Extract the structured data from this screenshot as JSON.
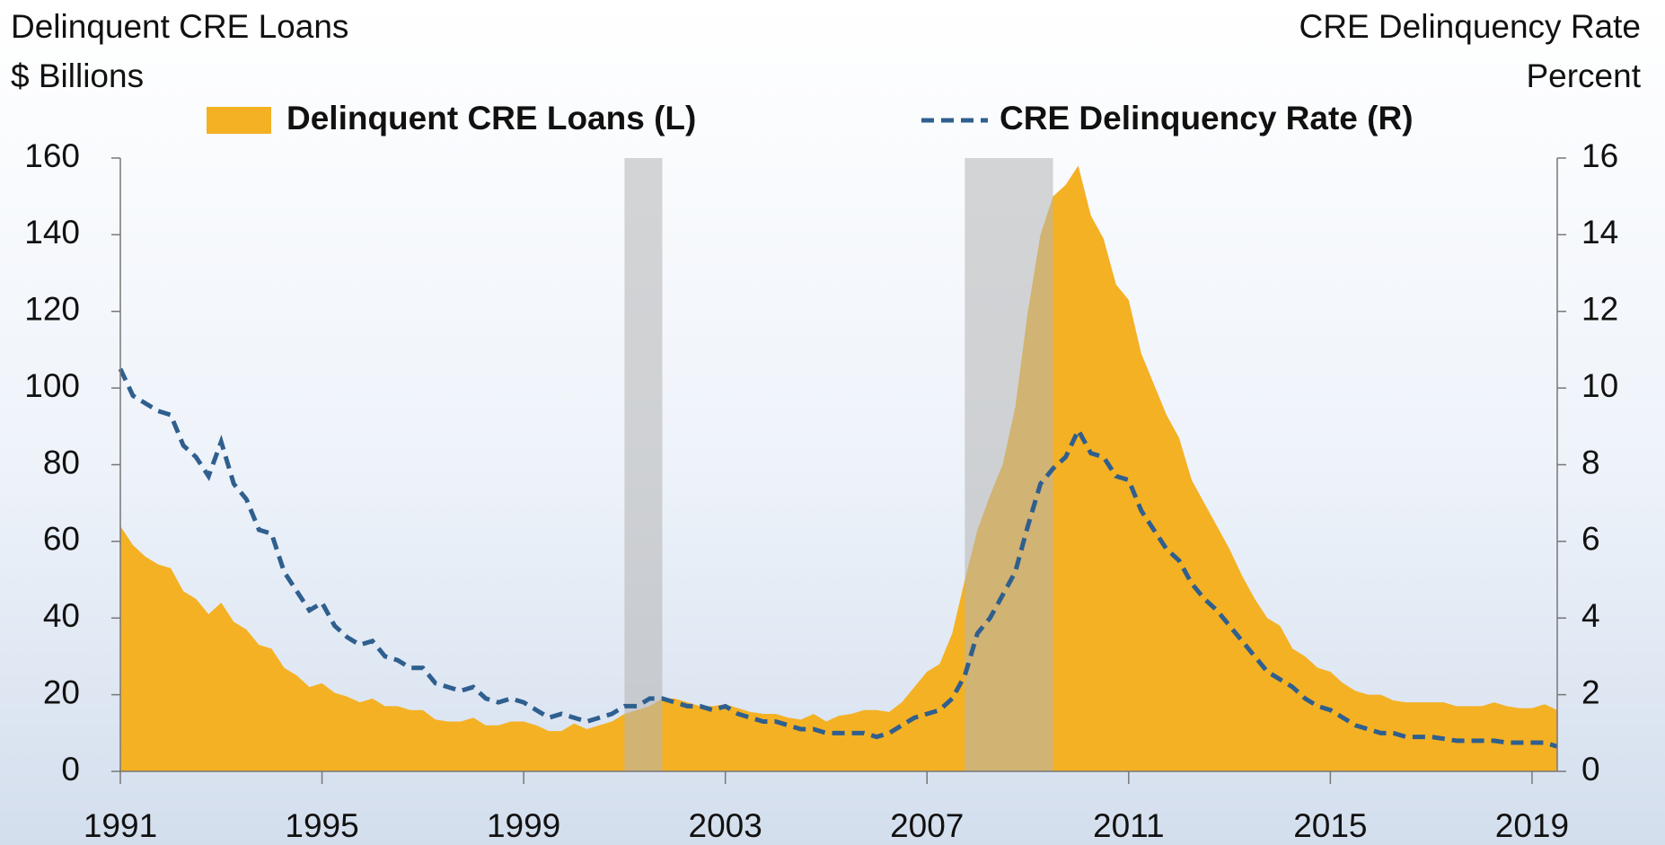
{
  "chart_data": {
    "type": "area_line",
    "left_axis_title": "Delinquent CRE Loans",
    "left_axis_unit": "$ Billions",
    "right_axis_title": "CRE Delinquency Rate",
    "right_axis_unit": "Percent",
    "x": [
      1991,
      1991.25,
      1991.5,
      1991.75,
      1992,
      1992.25,
      1992.5,
      1992.75,
      1993,
      1993.25,
      1993.5,
      1993.75,
      1994,
      1994.25,
      1994.5,
      1994.75,
      1995,
      1995.25,
      1995.5,
      1995.75,
      1996,
      1996.25,
      1996.5,
      1996.75,
      1997,
      1997.25,
      1997.5,
      1997.75,
      1998,
      1998.25,
      1998.5,
      1998.75,
      1999,
      1999.25,
      1999.5,
      1999.75,
      2000,
      2000.25,
      2000.5,
      2000.75,
      2001,
      2001.25,
      2001.5,
      2001.75,
      2002,
      2002.25,
      2002.5,
      2002.75,
      2003,
      2003.25,
      2003.5,
      2003.75,
      2004,
      2004.25,
      2004.5,
      2004.75,
      2005,
      2005.25,
      2005.5,
      2005.75,
      2006,
      2006.25,
      2006.5,
      2006.75,
      2007,
      2007.25,
      2007.5,
      2007.75,
      2008,
      2008.25,
      2008.5,
      2008.75,
      2009,
      2009.25,
      2009.5,
      2009.75,
      2010,
      2010.25,
      2010.5,
      2010.75,
      2011,
      2011.25,
      2011.5,
      2011.75,
      2012,
      2012.25,
      2012.5,
      2012.75,
      2013,
      2013.25,
      2013.5,
      2013.75,
      2014,
      2014.25,
      2014.5,
      2014.75,
      2015,
      2015.25,
      2015.5,
      2015.75,
      2016,
      2016.25,
      2016.5,
      2016.75,
      2017,
      2017.25,
      2017.5,
      2017.75,
      2018,
      2018.25,
      2018.5,
      2018.75,
      2019,
      2019.25,
      2019.5
    ],
    "series": [
      {
        "name": "Delinquent CRE Loans (L)",
        "kind": "area",
        "color": "#f4b124",
        "axis": "y",
        "values": [
          64,
          59,
          56,
          54,
          53,
          47,
          45,
          41,
          44,
          39,
          37,
          33,
          32,
          27,
          25,
          22,
          23,
          20.5,
          19.5,
          18,
          19,
          17,
          17,
          16,
          16,
          13.5,
          13,
          13,
          14,
          12,
          12,
          13,
          13,
          12,
          10.5,
          10.5,
          12.5,
          11,
          12,
          13,
          15,
          16,
          17,
          19,
          19,
          18,
          17,
          17,
          17.5,
          16.5,
          15.5,
          15,
          15,
          14,
          13.5,
          15,
          13,
          14.5,
          15,
          16,
          16,
          15.5,
          18,
          22,
          26,
          28,
          36,
          50,
          63,
          72,
          80,
          95,
          120,
          140,
          150,
          153,
          158,
          145,
          139,
          127,
          123,
          109,
          101,
          93,
          87,
          76,
          70,
          64,
          58,
          51,
          45,
          40,
          38,
          32,
          30,
          27,
          26,
          23,
          21,
          20,
          20,
          18.5,
          18,
          18,
          18,
          18,
          17,
          17,
          17,
          18,
          17,
          16.5,
          16.5,
          17.5,
          16
        ]
      },
      {
        "name": "CRE Delinquency Rate (R)",
        "kind": "dashed-line",
        "color": "#2f5f8e",
        "axis": "y2",
        "values": [
          10.5,
          9.8,
          9.6,
          9.4,
          9.3,
          8.5,
          8.2,
          7.7,
          8.6,
          7.5,
          7.1,
          6.3,
          6.2,
          5.2,
          4.7,
          4.2,
          4.4,
          3.8,
          3.5,
          3.3,
          3.4,
          3.0,
          2.9,
          2.7,
          2.7,
          2.3,
          2.2,
          2.1,
          2.2,
          1.9,
          1.8,
          1.9,
          1.8,
          1.6,
          1.4,
          1.5,
          1.4,
          1.3,
          1.4,
          1.5,
          1.7,
          1.7,
          1.9,
          1.9,
          1.8,
          1.7,
          1.7,
          1.6,
          1.7,
          1.5,
          1.4,
          1.3,
          1.3,
          1.2,
          1.1,
          1.1,
          1.0,
          1.0,
          1.0,
          1.0,
          0.9,
          1.0,
          1.2,
          1.4,
          1.5,
          1.6,
          1.9,
          2.5,
          3.6,
          4.0,
          4.6,
          5.2,
          6.4,
          7.5,
          7.9,
          8.2,
          8.9,
          8.3,
          8.2,
          7.7,
          7.6,
          6.8,
          6.3,
          5.8,
          5.5,
          4.9,
          4.5,
          4.2,
          3.8,
          3.4,
          3.0,
          2.6,
          2.4,
          2.2,
          1.9,
          1.7,
          1.6,
          1.4,
          1.2,
          1.1,
          1.0,
          1.0,
          0.9,
          0.9,
          0.9,
          0.85,
          0.8,
          0.8,
          0.8,
          0.8,
          0.75,
          0.75,
          0.75,
          0.75,
          0.65
        ]
      }
    ],
    "shaded_periods": [
      [
        2001.0,
        2001.75
      ],
      [
        2007.75,
        2009.5
      ]
    ],
    "shade_color": "#b4b4b4",
    "xlim": [
      1991,
      2019.5
    ],
    "xticks": [
      1991,
      1995,
      1999,
      2003,
      2007,
      2011,
      2015,
      2019
    ],
    "ylim": [
      0,
      160
    ],
    "yticks": [
      0,
      20,
      40,
      60,
      80,
      100,
      120,
      140,
      160
    ],
    "y2lim": [
      0,
      16
    ],
    "y2ticks": [
      0,
      2,
      4,
      6,
      8,
      10,
      12,
      14,
      16
    ]
  }
}
